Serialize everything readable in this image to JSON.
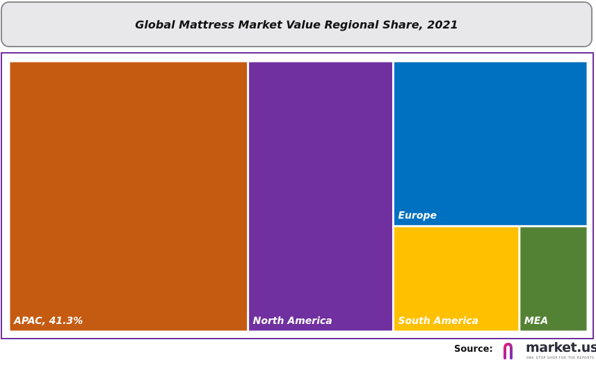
{
  "chart_data": {
    "type": "treemap",
    "title": "Global Mattress Market Value Regional Share, 2021",
    "items": [
      {
        "label": "APAC, 41.3%",
        "region": "APAC",
        "share": 41.3,
        "color": "#c55a11"
      },
      {
        "label": "North America",
        "region": "North America",
        "share": 25.1,
        "color": "#7030a0"
      },
      {
        "label": "Europe",
        "region": "Europe",
        "share": 20.5,
        "color": "#0070c0"
      },
      {
        "label": "South America",
        "region": "South America",
        "share": 8.5,
        "color": "#ffc000"
      },
      {
        "label": "MEA",
        "region": "MEA",
        "share": 4.6,
        "color": "#548235"
      }
    ]
  },
  "footer": {
    "source_label": "Source:",
    "brand": "market.us",
    "tagline": "ONE STOP SHOP FOR THE REPORTS",
    "brand_colors": [
      "#e21b7a",
      "#7a2fbf"
    ]
  }
}
